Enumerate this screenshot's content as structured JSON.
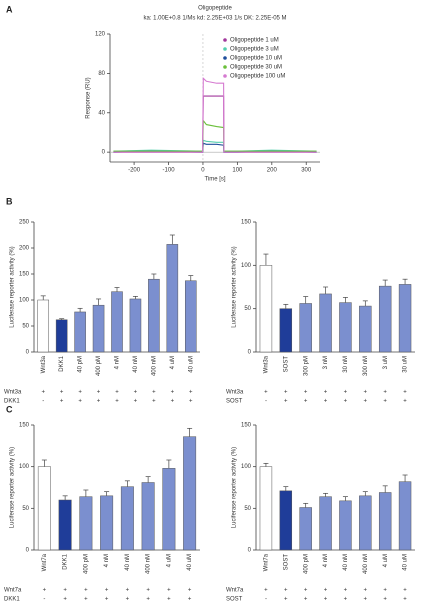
{
  "panels": [
    "A",
    "B",
    "C"
  ],
  "chart_data": [
    {
      "type": "line",
      "title": "Oligopeptide",
      "subtitle": "ka: 1.00E+0.8 1/Ms kd: 2.25E+03 1/s DK: 2.25E-05 M",
      "x_label": "Time [s]",
      "y_label": "Response (RU)",
      "x": [
        -260,
        -150,
        -1,
        1,
        10,
        40,
        60,
        61,
        100,
        200,
        330
      ],
      "series": [
        {
          "name": "Oligopeptide 1 uM",
          "color": "#a2389c",
          "values": [
            0,
            0,
            0,
            57,
            57,
            57,
            57,
            0,
            0,
            0,
            0
          ]
        },
        {
          "name": "Oligopeptide 3 uM",
          "color": "#55cfae",
          "values": [
            1,
            2,
            1,
            12,
            11,
            10,
            10,
            1,
            1,
            2,
            1
          ]
        },
        {
          "name": "Oligopeptide 10 uM",
          "color": "#1f4e9c",
          "values": [
            0,
            1,
            0,
            9,
            8,
            8,
            7,
            0,
            0,
            1,
            0
          ]
        },
        {
          "name": "Oligopeptide 30 uM",
          "color": "#6abf3a",
          "values": [
            1,
            1,
            1,
            32,
            28,
            26,
            25,
            1,
            1,
            1,
            1
          ]
        },
        {
          "name": "Oligopeptide 100 uM",
          "color": "#d57ad0",
          "values": [
            0,
            0,
            0,
            75,
            72,
            70,
            70,
            0,
            0,
            0,
            0
          ]
        }
      ],
      "xlim": [
        -270,
        340
      ],
      "xticks": [
        -200,
        -100,
        0,
        100,
        200,
        300
      ],
      "ylim": [
        -10,
        120
      ],
      "yticks": [
        0,
        40,
        80,
        120
      ]
    },
    {
      "type": "bar",
      "y_label": "Luciferase reporter activity (%)",
      "categories": [
        "Wnt3a",
        "DKK1",
        "40 pM",
        "400 pM",
        "4 nM",
        "40 nM",
        "400 nM",
        "4 uM",
        "40 uM"
      ],
      "values": [
        100,
        62,
        77,
        90,
        116,
        102,
        140,
        207,
        137
      ],
      "errors": [
        8,
        2,
        7,
        12,
        8,
        5,
        10,
        18,
        10
      ],
      "colors": [
        "#ffffff",
        "#1f3d99",
        "#7b8fcf",
        "#7b8fcf",
        "#7b8fcf",
        "#7b8fcf",
        "#7b8fcf",
        "#7b8fcf",
        "#7b8fcf"
      ],
      "ylim": [
        0,
        250
      ],
      "yticks": [
        0,
        50,
        100,
        150,
        200,
        250
      ],
      "treatments": [
        {
          "label": "Wnt3a",
          "marks": [
            "+",
            "+",
            "+",
            "+",
            "+",
            "+",
            "+",
            "+",
            "+"
          ]
        },
        {
          "label": "DKK1",
          "marks": [
            "-",
            "+",
            "+",
            "+",
            "+",
            "+",
            "+",
            "+",
            "+"
          ]
        }
      ]
    },
    {
      "type": "bar",
      "y_label": "Luciferase reporter activity (%)",
      "categories": [
        "Wnt3a",
        "SOST",
        "300 pM",
        "3 nM",
        "30 nM",
        "300 nM",
        "3 uM",
        "30 uM"
      ],
      "values": [
        100,
        50,
        56,
        67,
        57,
        53,
        76,
        78
      ],
      "errors": [
        13,
        5,
        8,
        8,
        6,
        6,
        7,
        6
      ],
      "colors": [
        "#ffffff",
        "#1f3d99",
        "#7b8fcf",
        "#7b8fcf",
        "#7b8fcf",
        "#7b8fcf",
        "#7b8fcf",
        "#7b8fcf"
      ],
      "ylim": [
        0,
        150
      ],
      "yticks": [
        0,
        50,
        100,
        150
      ],
      "treatments": [
        {
          "label": "Wnt3a",
          "marks": [
            "+",
            "+",
            "+",
            "+",
            "+",
            "+",
            "+",
            "+"
          ]
        },
        {
          "label": "SOST",
          "marks": [
            "-",
            "+",
            "+",
            "+",
            "+",
            "+",
            "+",
            "+"
          ]
        }
      ]
    },
    {
      "type": "bar",
      "y_label": "Luciferase reporter activity (%)",
      "categories": [
        "Wnt7a",
        "DKK1",
        "400 pM",
        "4 nM",
        "40 nM",
        "400 nM",
        "4 uM",
        "40 uM"
      ],
      "values": [
        100,
        60,
        64,
        65,
        76,
        81,
        98,
        136
      ],
      "errors": [
        8,
        5,
        8,
        5,
        7,
        7,
        10,
        10
      ],
      "colors": [
        "#ffffff",
        "#1f3d99",
        "#7b8fcf",
        "#7b8fcf",
        "#7b8fcf",
        "#7b8fcf",
        "#7b8fcf",
        "#7b8fcf"
      ],
      "ylim": [
        0,
        150
      ],
      "yticks": [
        0,
        50,
        100,
        150
      ],
      "treatments": [
        {
          "label": "Wnt7a",
          "marks": [
            "+",
            "+",
            "+",
            "+",
            "+",
            "+",
            "+",
            "+"
          ]
        },
        {
          "label": "DKK1",
          "marks": [
            "-",
            "+",
            "+",
            "+",
            "+",
            "+",
            "+",
            "+"
          ]
        }
      ]
    },
    {
      "type": "bar",
      "y_label": "Luciferase reporter activity (%)",
      "categories": [
        "Wnt7a",
        "SOST",
        "400 pM",
        "4 nM",
        "40 nM",
        "400 nM",
        "4 uM",
        "40 uM"
      ],
      "values": [
        100,
        71,
        51,
        64,
        59,
        65,
        69,
        82
      ],
      "errors": [
        4,
        5,
        5,
        4,
        5,
        5,
        8,
        8
      ],
      "colors": [
        "#ffffff",
        "#1f3d99",
        "#7b8fcf",
        "#7b8fcf",
        "#7b8fcf",
        "#7b8fcf",
        "#7b8fcf",
        "#7b8fcf"
      ],
      "ylim": [
        0,
        150
      ],
      "yticks": [
        0,
        50,
        100,
        150
      ],
      "treatments": [
        {
          "label": "Wnt7a",
          "marks": [
            "+",
            "+",
            "+",
            "+",
            "+",
            "+",
            "+",
            "+"
          ]
        },
        {
          "label": "SOST",
          "marks": [
            "-",
            "+",
            "+",
            "+",
            "+",
            "+",
            "+",
            "+"
          ]
        }
      ]
    }
  ]
}
